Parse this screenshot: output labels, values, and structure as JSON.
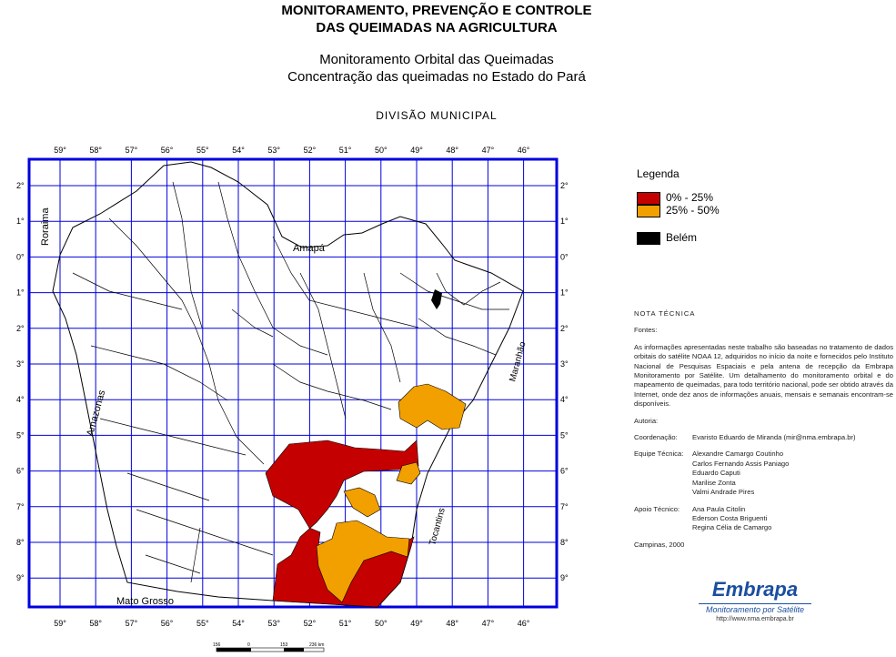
{
  "header": {
    "title_line1": "MONITORAMENTO, PREVENÇÃO E CONTROLE",
    "title_line2": "DAS QUEIMADAS NA AGRICULTURA",
    "subtitle_line1": "Monitoramento Orbital das Queimadas",
    "subtitle_line2": "Concentração das queimadas no Estado do Pará",
    "division": "DIVISÃO MUNICIPAL"
  },
  "map": {
    "lon_labels": [
      "59°",
      "58°",
      "57°",
      "56°",
      "55°",
      "54°",
      "53°",
      "52°",
      "51°",
      "50°",
      "49°",
      "48°",
      "47°",
      "46°"
    ],
    "lat_labels": [
      "2°",
      "1°",
      "0°",
      "1°",
      "2°",
      "3°",
      "4°",
      "5°",
      "6°",
      "7°",
      "8°",
      "9°"
    ],
    "places": {
      "roraima": "Roraima",
      "amapa": "Amapá",
      "amazonas": "Amazonas",
      "maranhao": "Maranhão",
      "tocantins": "Tocantins",
      "mato_grosso": "Mato Grosso"
    },
    "colors": {
      "class1": "#c40000",
      "class2": "#f2a000",
      "capital": "#000000",
      "grid": "#0000dd",
      "frame": "#0000dd"
    },
    "scale": {
      "t0": "156",
      "t1": "0",
      "t2": "153",
      "t3": "236 km"
    }
  },
  "legend": {
    "title": "Legenda",
    "items": [
      {
        "label": "0% - 25%",
        "color": "#c40000"
      },
      {
        "label": "25% - 50%",
        "color": "#f2a000"
      },
      {
        "label": "Belém",
        "color": "#000000"
      }
    ]
  },
  "note": {
    "heading": "NOTA TÉCNICA",
    "fontes_label": "Fontes:",
    "fontes_text": "As informações apresentadas neste trabalho são baseadas no tratamento de dados orbitais do satélite NOAA 12, adquiridos no início da noite e fornecidos pelo Instituto Nacional de Pesquisas Espaciais e pela antena de recepção da Embrapa Monitoramento por Satélite. Um detalhamento do monitoramento orbital e do mapeamento de queimadas, para todo território nacional, pode ser obtido através da Internet, onde dez anos de informações anuais, mensais e semanais encontram-se disponíveis.",
    "autoria_label": "Autoria:",
    "coord_label": "Coordenação:",
    "coord_value": "Evaristo Eduardo de Miranda (mir@nma.embrapa.br)",
    "equipe_label": "Equipe Técnica:",
    "equipe": [
      "Alexandre Camargo Coutinho",
      "Carlos Fernando Assis Paniago",
      "Eduardo Caputi",
      "Marilise Zonta",
      "Valmi Andrade Pires"
    ],
    "apoio_label": "Apoio Técnico:",
    "apoio": [
      "Ana Paula Citolin",
      "Ederson Costa Briguenti",
      "Regina Célia de Camargo"
    ],
    "place_date": "Campinas, 2000"
  },
  "logo": {
    "brand": "Embrapa",
    "subtitle": "Monitoramento por Satélite",
    "url": "http://www.nma.embrapa.br"
  }
}
